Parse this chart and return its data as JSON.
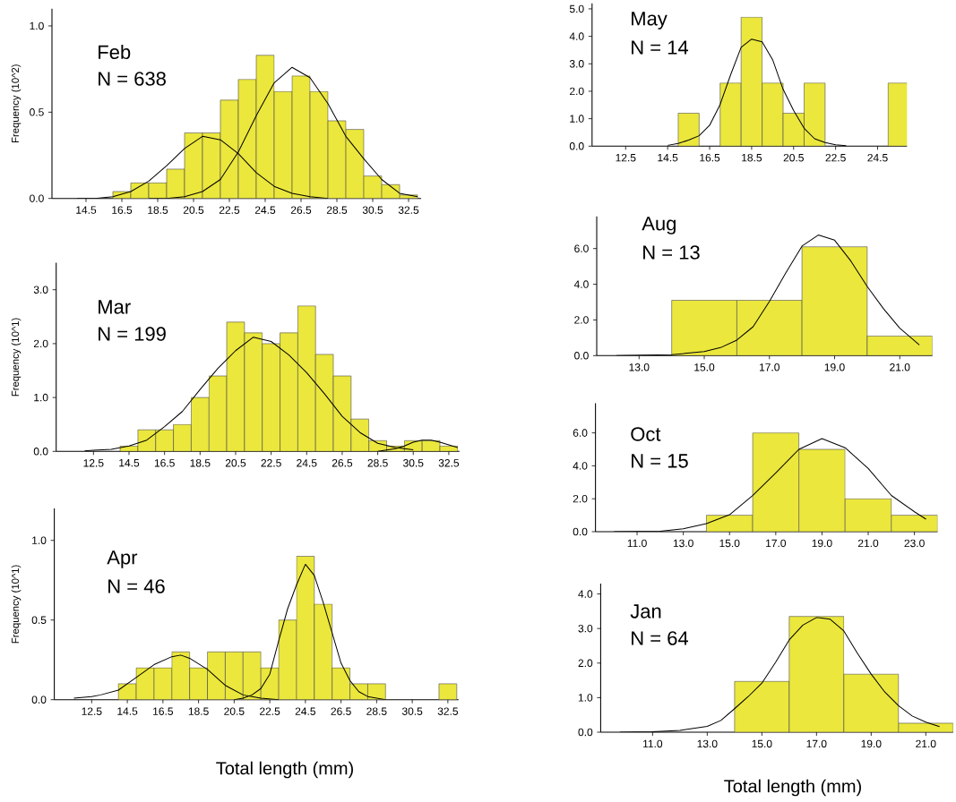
{
  "chart_data": [
    {
      "type": "histogram",
      "ylabel": "Frequency (10^2)",
      "annotations": [
        "Feb",
        "N = 638"
      ],
      "color": "#ebe73c",
      "bins": [
        16,
        17,
        18,
        19,
        20,
        21,
        22,
        23,
        24,
        25,
        26,
        27,
        28,
        29,
        30,
        31,
        32,
        33
      ],
      "values": [
        0.04,
        0.09,
        0.09,
        0.17,
        0.38,
        0.38,
        0.57,
        0.69,
        0.83,
        0.62,
        0.71,
        0.62,
        0.45,
        0.4,
        0.13,
        0.08,
        0.02
      ],
      "series": [
        {
          "type": "line",
          "color": "#000000",
          "x": [
            14,
            15,
            16,
            17,
            18,
            19,
            20,
            21,
            22,
            23,
            24,
            25,
            26,
            27,
            28
          ],
          "values": [
            0,
            0,
            0.01,
            0.04,
            0.1,
            0.19,
            0.29,
            0.36,
            0.34,
            0.26,
            0.15,
            0.07,
            0.03,
            0.01,
            0
          ]
        },
        {
          "type": "line",
          "color": "#000000",
          "x": [
            18,
            19,
            20,
            21,
            22,
            23,
            24,
            25,
            26,
            27,
            28,
            29,
            30,
            31,
            32,
            33
          ],
          "values": [
            0,
            0,
            0.01,
            0.04,
            0.11,
            0.27,
            0.48,
            0.67,
            0.76,
            0.7,
            0.55,
            0.36,
            0.23,
            0.11,
            0.03,
            0.01
          ]
        }
      ],
      "xlim": [
        12.6,
        33.2
      ],
      "ylim": [
        0,
        1.1
      ],
      "xticks": [
        14.5,
        16.5,
        18.5,
        20.5,
        22.5,
        24.5,
        26.5,
        28.5,
        30.5,
        32.5
      ],
      "yticks": [
        {
          "value": 0,
          "label": "0.0"
        },
        0.5,
        {
          "value": 1,
          "label": "1.0"
        }
      ]
    },
    {
      "type": "histogram",
      "ylabel": "Frequency (10^1)",
      "annotations": [
        "Mar",
        "N = 199"
      ],
      "color": "#ebe73c",
      "bins": [
        14,
        15,
        16,
        17,
        18,
        19,
        20,
        21,
        22,
        23,
        24,
        25,
        26,
        27,
        28,
        29,
        30,
        31,
        32,
        33
      ],
      "values": [
        0.1,
        0.4,
        0.4,
        0.5,
        1.0,
        1.4,
        2.4,
        2.2,
        2.0,
        2.2,
        2.7,
        1.8,
        1.4,
        0.6,
        0.2,
        0.1,
        0.2,
        0.2,
        0.1
      ],
      "series": [
        {
          "type": "line",
          "color": "#000000",
          "x": [
            12,
            12.5,
            13.5,
            14.5,
            15.5,
            16.5,
            17.5,
            18.5,
            19.5,
            20.5,
            21.5,
            22.5,
            23.5,
            24.5,
            25.5,
            26.5,
            27.5,
            28.5,
            29.5,
            30.5
          ],
          "values": [
            0.01,
            0.02,
            0.04,
            0.1,
            0.21,
            0.46,
            0.74,
            1.15,
            1.54,
            1.87,
            2.12,
            2.04,
            1.79,
            1.46,
            1.07,
            0.65,
            0.35,
            0.15,
            0.07,
            0.03
          ]
        },
        {
          "type": "line",
          "color": "#000000",
          "x": [
            28.5,
            29.5,
            30,
            30.5,
            31,
            31.5,
            32,
            32.5,
            33
          ],
          "values": [
            0,
            0.05,
            0.1,
            0.17,
            0.21,
            0.21,
            0.17,
            0.12,
            0.07
          ]
        }
      ],
      "xlim": [
        10.4,
        33.1
      ],
      "ylim": [
        0,
        3.5
      ],
      "xticks": [
        12.5,
        14.5,
        16.5,
        18.5,
        20.5,
        22.5,
        24.5,
        26.5,
        28.5,
        30.5,
        32.5
      ],
      "yticks": [
        {
          "value": 0,
          "label": "0.0"
        },
        {
          "value": 1,
          "label": "1.0"
        },
        {
          "value": 2,
          "label": "2.0"
        },
        {
          "value": 3,
          "label": "3.0"
        }
      ]
    },
    {
      "type": "histogram",
      "ylabel": "Frequency (10^1)",
      "xlabel": "Total length (mm)",
      "annotations": [
        "Apr",
        "N = 46"
      ],
      "color": "#ebe73c",
      "bins": [
        14,
        15,
        16,
        17,
        18,
        19,
        20,
        21,
        22,
        23,
        24,
        25,
        26,
        27,
        28,
        29,
        30,
        31,
        32,
        33
      ],
      "values": [
        0.1,
        0.2,
        0.2,
        0.3,
        0.2,
        0.3,
        0.3,
        0.3,
        0.2,
        0.5,
        0.9,
        0.6,
        0.2,
        0.1,
        0.1,
        0,
        0,
        0,
        0.1
      ],
      "series": [
        {
          "type": "line",
          "color": "#000000",
          "x": [
            11.5,
            12.5,
            13,
            14,
            15,
            16,
            17,
            17.5,
            18,
            19,
            20,
            21,
            21.5,
            22,
            23
          ],
          "values": [
            0.01,
            0.02,
            0.03,
            0.06,
            0.14,
            0.22,
            0.27,
            0.28,
            0.26,
            0.19,
            0.09,
            0.03,
            0.02,
            0.01,
            0
          ]
        },
        {
          "type": "line",
          "color": "#000000",
          "x": [
            20.5,
            21,
            21.5,
            22,
            22.5,
            23,
            23.5,
            24,
            24.5,
            25,
            25.5,
            26,
            26.5,
            27,
            27.5,
            28,
            29
          ],
          "values": [
            0,
            0.01,
            0.03,
            0.07,
            0.16,
            0.37,
            0.57,
            0.72,
            0.85,
            0.78,
            0.61,
            0.42,
            0.23,
            0.12,
            0.05,
            0.02,
            0
          ]
        }
      ],
      "xlim": [
        10.4,
        33.1
      ],
      "ylim": [
        0,
        1.2
      ],
      "xticks": [
        12.5,
        14.5,
        16.5,
        18.5,
        20.5,
        22.5,
        24.5,
        26.5,
        28.5,
        30.5,
        32.5
      ],
      "yticks": [
        {
          "value": 0,
          "label": "0.0"
        },
        0.5,
        {
          "value": 1,
          "label": "1.0"
        }
      ]
    },
    {
      "type": "histogram",
      "annotations": [
        "May",
        "N = 14"
      ],
      "color": "#ebe73c",
      "bins": [
        15,
        16,
        17,
        18,
        19,
        20,
        21,
        22,
        23,
        24,
        25,
        26
      ],
      "values": [
        1.2,
        0,
        2.3,
        4.7,
        2.3,
        1.2,
        2.3,
        0,
        0,
        0,
        2.3
      ],
      "series": [
        {
          "type": "line",
          "color": "#000000",
          "x": [
            14.5,
            15,
            15.5,
            16,
            16.5,
            17,
            17.5,
            18,
            18.5,
            19,
            19.5,
            20,
            20.5,
            21,
            21.5,
            22,
            22.5,
            23
          ],
          "values": [
            0.03,
            0.1,
            0.22,
            0.38,
            0.76,
            1.52,
            2.6,
            3.6,
            3.9,
            3.8,
            3.15,
            2.07,
            1.3,
            0.65,
            0.27,
            0.13,
            0.05,
            0.02
          ]
        }
      ],
      "xlim": [
        10.9,
        25.9
      ],
      "ylim": [
        0,
        5.2
      ],
      "xticks": [
        12.5,
        14.5,
        16.5,
        18.5,
        20.5,
        22.5,
        24.5
      ],
      "yticks": [
        {
          "value": 0,
          "label": "0.0"
        },
        {
          "value": 1,
          "label": "1.0"
        },
        {
          "value": 2,
          "label": "2.0"
        },
        {
          "value": 3,
          "label": "3.0"
        },
        {
          "value": 4,
          "label": "4.0"
        },
        {
          "value": 5,
          "label": "5.0"
        }
      ]
    },
    {
      "type": "histogram",
      "annotations": [
        "Aug",
        "N = 13"
      ],
      "color": "#ebe73c",
      "bins": [
        14,
        16,
        18,
        20,
        22
      ],
      "values": [
        3.1,
        3.1,
        6.1,
        1.1
      ],
      "series": [
        {
          "type": "line",
          "color": "#000000",
          "x": [
            12.3,
            14,
            15,
            15.5,
            16,
            16.5,
            17,
            17.5,
            18,
            18.5,
            19,
            19.5,
            20,
            20.5,
            21,
            21.6
          ],
          "values": [
            0,
            0.05,
            0.23,
            0.45,
            0.87,
            1.62,
            3.04,
            4.63,
            6.14,
            6.76,
            6.47,
            5.3,
            3.88,
            2.63,
            1.54,
            0.6
          ]
        }
      ],
      "xlim": [
        11.7,
        22.0
      ],
      "ylim": [
        0,
        7.8
      ],
      "xticks": [
        {
          "value": 13,
          "label": "13.0"
        },
        {
          "value": 15,
          "label": "15.0"
        },
        {
          "value": 17,
          "label": "17.0"
        },
        {
          "value": 19,
          "label": "19.0"
        },
        {
          "value": 21,
          "label": "21.0"
        }
      ],
      "yticks": [
        {
          "value": 0,
          "label": "0.0"
        },
        {
          "value": 2,
          "label": "2.0"
        },
        {
          "value": 4,
          "label": "4.0"
        },
        {
          "value": 6,
          "label": "6.0"
        }
      ]
    },
    {
      "type": "histogram",
      "annotations": [
        "Oct",
        "N = 15"
      ],
      "color": "#ebe73c",
      "bins": [
        14,
        16,
        18,
        20,
        22,
        24
      ],
      "values": [
        1.0,
        6.0,
        5.0,
        2.0,
        1.0
      ],
      "series": [
        {
          "type": "line",
          "color": "#000000",
          "x": [
            10,
            11,
            12,
            13,
            14,
            15,
            16,
            17,
            18,
            19,
            20,
            21,
            22,
            23,
            23.5
          ],
          "values": [
            0,
            0.01,
            0.03,
            0.18,
            0.49,
            1.03,
            2.2,
            3.57,
            5.0,
            5.65,
            5.1,
            3.84,
            2.2,
            1.21,
            0.76
          ]
        }
      ],
      "xlim": [
        9.2,
        24.0
      ],
      "ylim": [
        0,
        7.8
      ],
      "xticks": [
        {
          "value": 11,
          "label": "11.0"
        },
        {
          "value": 13,
          "label": "13.0"
        },
        {
          "value": 15,
          "label": "15.0"
        },
        {
          "value": 17,
          "label": "17.0"
        },
        {
          "value": 19,
          "label": "19.0"
        },
        {
          "value": 21,
          "label": "21.0"
        },
        {
          "value": 23,
          "label": "23.0"
        }
      ],
      "yticks": [
        {
          "value": 0,
          "label": "0.0"
        },
        {
          "value": 2,
          "label": "2.0"
        },
        {
          "value": 4,
          "label": "4.0"
        },
        {
          "value": 6,
          "label": "6.0"
        }
      ]
    },
    {
      "type": "histogram",
      "xlabel": "Total length (mm)",
      "annotations": [
        "Jan",
        "N = 64"
      ],
      "color": "#ebe73c",
      "bins": [
        14,
        16,
        18,
        20,
        22
      ],
      "values": [
        1.47,
        3.35,
        1.68,
        0.26
      ],
      "series": [
        {
          "type": "line",
          "color": "#000000",
          "x": [
            9.8,
            11,
            12,
            13,
            13.5,
            14,
            14.5,
            15,
            15.5,
            16,
            16.5,
            17,
            17.5,
            18,
            18.5,
            19,
            19.5,
            20,
            20.5,
            21,
            21.5
          ],
          "values": [
            0,
            0.01,
            0.05,
            0.17,
            0.34,
            0.68,
            1.03,
            1.42,
            2.02,
            2.67,
            3.1,
            3.32,
            3.27,
            2.93,
            2.28,
            1.68,
            1.16,
            0.77,
            0.47,
            0.29,
            0.16
          ]
        }
      ],
      "xlim": [
        9.1,
        22.0
      ],
      "ylim": [
        0,
        4.3
      ],
      "xticks": [
        {
          "value": 11,
          "label": "11.0"
        },
        {
          "value": 13,
          "label": "13.0"
        },
        {
          "value": 15,
          "label": "15.0"
        },
        {
          "value": 17,
          "label": "17.0"
        },
        {
          "value": 19,
          "label": "19.0"
        },
        {
          "value": 21,
          "label": "21.0"
        }
      ],
      "yticks": [
        {
          "value": 0,
          "label": "0.0"
        },
        {
          "value": 1,
          "label": "1.0"
        },
        {
          "value": 2,
          "label": "2.0"
        },
        {
          "value": 3,
          "label": "3.0"
        },
        {
          "value": 4,
          "label": "4.0"
        }
      ]
    }
  ]
}
